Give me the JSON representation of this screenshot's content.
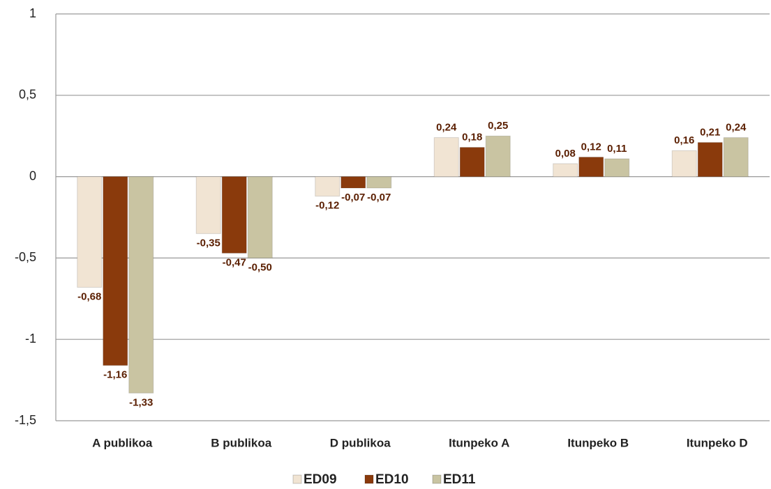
{
  "chart_data": {
    "type": "bar",
    "categories": [
      "A publikoa",
      "B publikoa",
      "D publikoa",
      "Itunpeko A",
      "Itunpeko B",
      "Itunpeko D"
    ],
    "series": [
      {
        "name": "ED09",
        "color": "#f1e4d3",
        "values": [
          -0.68,
          -0.35,
          -0.12,
          0.24,
          0.08,
          0.16
        ],
        "value_labels": [
          "-0,68",
          "-0,35",
          "-0,12",
          "0,24",
          "0,08",
          "0,16"
        ]
      },
      {
        "name": "ED10",
        "color": "#8a3a0c",
        "values": [
          -1.16,
          -0.47,
          -0.07,
          0.18,
          0.12,
          0.21
        ],
        "value_labels": [
          "-1,16",
          "-0,47",
          "-0,07",
          "0,18",
          "0,12",
          "0,21"
        ]
      },
      {
        "name": "ED11",
        "color": "#c9c4a2",
        "values": [
          -1.33,
          -0.5,
          -0.07,
          0.25,
          0.11,
          0.24
        ],
        "value_labels": [
          "-1,33",
          "-0,50",
          "-0,07",
          "0,25",
          "0,11",
          "0,24"
        ]
      }
    ],
    "ylim": [
      -1.5,
      1
    ],
    "yticks": [
      {
        "value": -1.5,
        "label": "-1,5"
      },
      -1,
      {
        "value": -0.5,
        "label": "-0,5"
      },
      0,
      {
        "value": 0.5,
        "label": "0,5"
      },
      1
    ],
    "grid": true,
    "legend": "bottom"
  }
}
